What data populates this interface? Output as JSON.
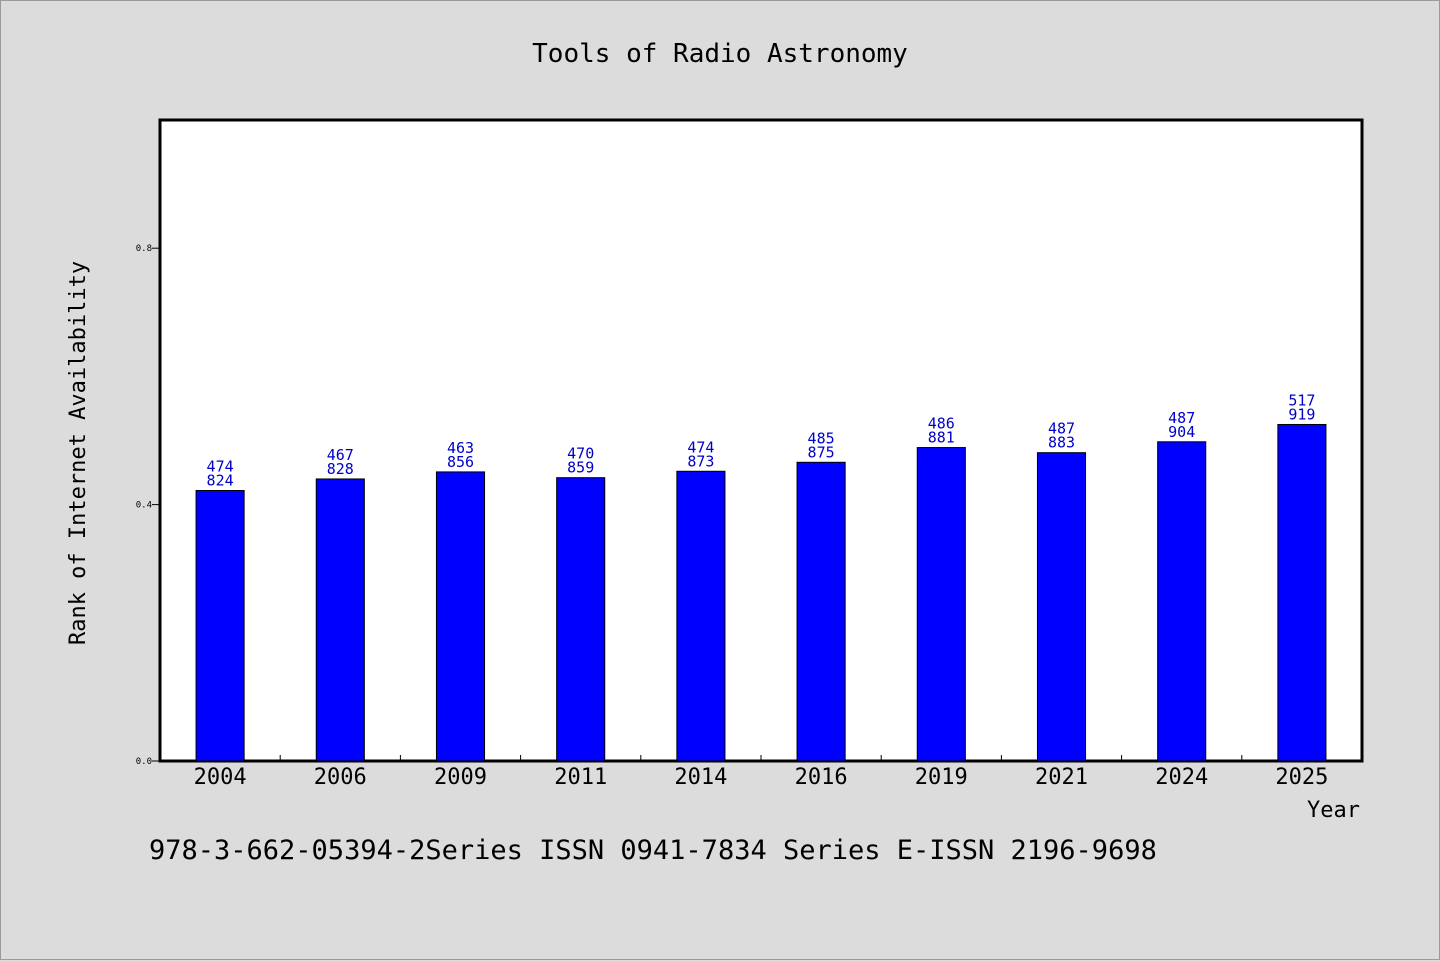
{
  "chart_data": {
    "type": "bar",
    "title": "Tools of Radio Astronomy",
    "xlabel": "Year",
    "ylabel": "Rank of Internet Availability",
    "categories": [
      "2004",
      "2006",
      "2009",
      "2011",
      "2014",
      "2016",
      "2019",
      "2021",
      "2024",
      "2025"
    ],
    "values": [
      0.422,
      0.44,
      0.451,
      0.442,
      0.452,
      0.466,
      0.489,
      0.481,
      0.498,
      0.525
    ],
    "data_labels": [
      [
        "474",
        "824"
      ],
      [
        "467",
        "828"
      ],
      [
        "463",
        "856"
      ],
      [
        "470",
        "859"
      ],
      [
        "474",
        "873"
      ],
      [
        "485",
        "875"
      ],
      [
        "486",
        "881"
      ],
      [
        "487",
        "883"
      ],
      [
        "487",
        "904"
      ],
      [
        "517",
        "919"
      ]
    ],
    "yticks": [
      "0.0",
      "0.4",
      "0.8"
    ],
    "ylim": [
      0,
      1.0
    ],
    "bar_color": "#0000ff",
    "label_color": "#0000c8",
    "grid": false,
    "legend": "none"
  },
  "footer": {
    "text": "978-3-662-05394-2Series ISSN 0941-7834 Series E-ISSN 2196-9698"
  }
}
